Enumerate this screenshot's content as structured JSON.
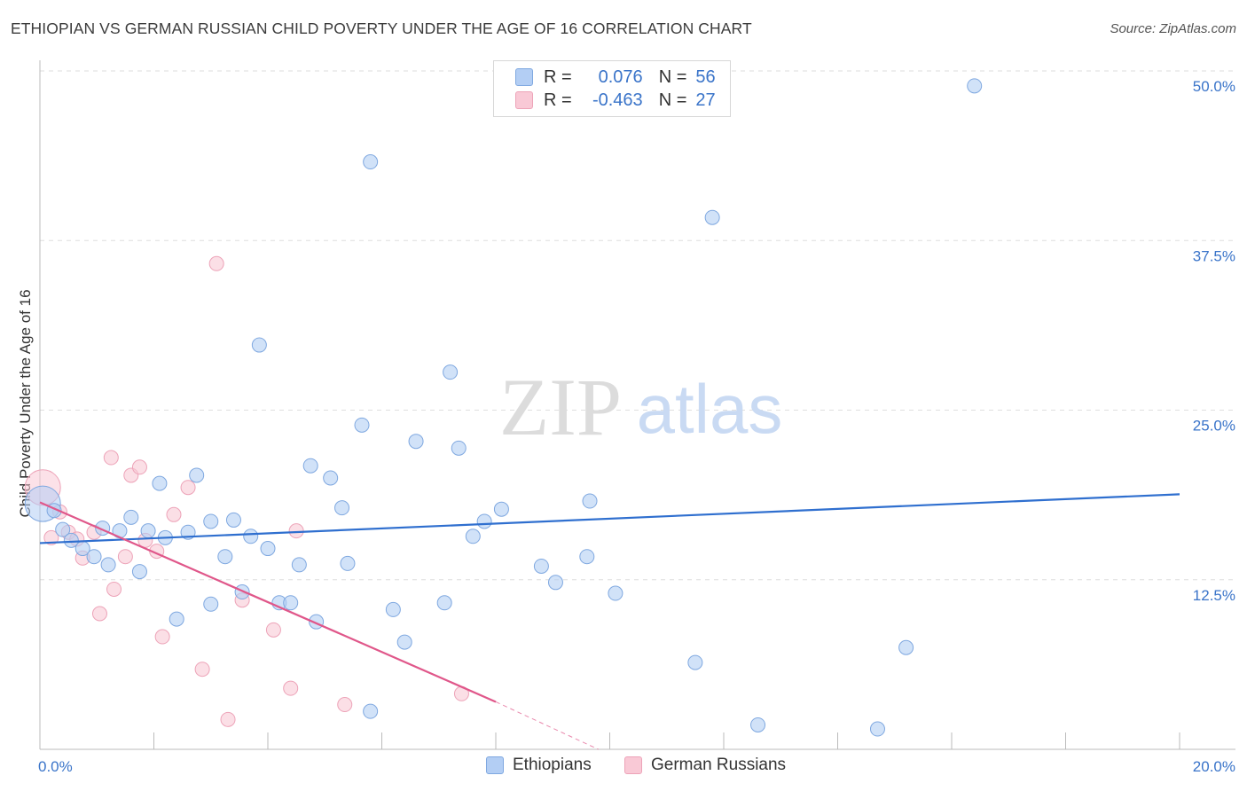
{
  "title": "ETHIOPIAN VS GERMAN RUSSIAN CHILD POVERTY UNDER THE AGE OF 16 CORRELATION CHART",
  "source": "Source: ZipAtlas.com",
  "watermark": {
    "zip": "ZIP",
    "atlas": "atlas"
  },
  "legend": {
    "ethiopians": {
      "r_label": "R =",
      "r_value": "0.076",
      "n_label": "N =",
      "n_value": "56"
    },
    "german_russians": {
      "r_label": "R =",
      "r_value": "-0.463",
      "n_label": "N =",
      "n_value": "27"
    }
  },
  "bottom_legend": {
    "ethiopians": "Ethiopians",
    "german_russians": "German Russians"
  },
  "colors": {
    "blue_fill": "#b3cef4",
    "blue_stroke": "#7fa8e0",
    "blue_line": "#2f6fcf",
    "pink_fill": "#f9c9d6",
    "pink_stroke": "#eda3b8",
    "pink_line": "#e0578a",
    "axis_label": "#3a74c9",
    "grid": "#dedede"
  },
  "chart_data": {
    "type": "scatter",
    "title": "ETHIOPIAN VS GERMAN RUSSIAN CHILD POVERTY UNDER THE AGE OF 16 CORRELATION CHART",
    "xlabel": "",
    "ylabel": "Child Poverty Under the Age of 16",
    "xlim": [
      0,
      20
    ],
    "ylim": [
      0,
      50
    ],
    "x_tick_labels": [
      {
        "value": 0,
        "label": "0.0%"
      },
      {
        "value": 20,
        "label": "20.0%"
      }
    ],
    "y_tick_labels": [
      {
        "value": 12.5,
        "label": "12.5%"
      },
      {
        "value": 25,
        "label": "25.0%"
      },
      {
        "value": 37.5,
        "label": "37.5%"
      },
      {
        "value": 50,
        "label": "50.0%"
      }
    ],
    "grid": true,
    "legend_position": "top-center",
    "series": [
      {
        "name": "Ethiopians",
        "r": 0.076,
        "n": 56,
        "trend": {
          "x": [
            0,
            20
          ],
          "y": [
            15.2,
            18.8
          ]
        },
        "points": [
          [
            0.05,
            18.1
          ],
          [
            0.25,
            17.6
          ],
          [
            0.4,
            16.2
          ],
          [
            0.55,
            15.4
          ],
          [
            0.75,
            14.8
          ],
          [
            0.95,
            14.2
          ],
          [
            1.1,
            16.3
          ],
          [
            1.2,
            13.6
          ],
          [
            1.4,
            16.1
          ],
          [
            1.6,
            17.1
          ],
          [
            1.75,
            13.1
          ],
          [
            1.9,
            16.1
          ],
          [
            2.1,
            19.6
          ],
          [
            2.2,
            15.6
          ],
          [
            2.4,
            9.6
          ],
          [
            2.6,
            16.0
          ],
          [
            2.75,
            20.2
          ],
          [
            3.0,
            10.7
          ],
          [
            3.0,
            16.8
          ],
          [
            3.25,
            14.2
          ],
          [
            3.4,
            16.9
          ],
          [
            3.55,
            11.6
          ],
          [
            3.7,
            15.7
          ],
          [
            3.85,
            29.8
          ],
          [
            4.0,
            14.8
          ],
          [
            4.2,
            10.8
          ],
          [
            4.4,
            10.8
          ],
          [
            4.55,
            13.6
          ],
          [
            4.75,
            20.9
          ],
          [
            4.85,
            9.4
          ],
          [
            5.1,
            20.0
          ],
          [
            5.3,
            17.8
          ],
          [
            5.4,
            13.7
          ],
          [
            5.65,
            23.9
          ],
          [
            5.8,
            2.8
          ],
          [
            5.8,
            43.3
          ],
          [
            6.2,
            10.3
          ],
          [
            6.4,
            7.9
          ],
          [
            6.6,
            22.7
          ],
          [
            7.1,
            10.8
          ],
          [
            7.2,
            27.8
          ],
          [
            7.35,
            22.2
          ],
          [
            7.6,
            15.7
          ],
          [
            7.8,
            16.8
          ],
          [
            8.1,
            17.7
          ],
          [
            8.8,
            13.5
          ],
          [
            9.05,
            12.3
          ],
          [
            9.6,
            14.2
          ],
          [
            9.65,
            18.3
          ],
          [
            10.1,
            11.5
          ],
          [
            11.5,
            6.4
          ],
          [
            11.8,
            39.2
          ],
          [
            12.6,
            1.8
          ],
          [
            14.7,
            1.5
          ],
          [
            15.2,
            7.5
          ],
          [
            16.4,
            48.9
          ]
        ]
      },
      {
        "name": "German Russians",
        "r": -0.463,
        "n": 27,
        "trend": {
          "x": [
            0,
            8
          ],
          "y": [
            18.2,
            3.5
          ]
        },
        "trend_extension": {
          "x": [
            8,
            9.8
          ],
          "y": [
            3.5,
            0.0
          ]
        },
        "points": [
          [
            0.05,
            19.3
          ],
          [
            0.2,
            15.6
          ],
          [
            0.35,
            17.5
          ],
          [
            0.5,
            16.0
          ],
          [
            0.65,
            15.5
          ],
          [
            0.75,
            14.1
          ],
          [
            0.95,
            16.0
          ],
          [
            1.05,
            10.0
          ],
          [
            1.25,
            21.5
          ],
          [
            1.3,
            11.8
          ],
          [
            1.5,
            14.2
          ],
          [
            1.6,
            20.2
          ],
          [
            1.75,
            20.8
          ],
          [
            1.85,
            15.4
          ],
          [
            2.05,
            14.6
          ],
          [
            2.15,
            8.3
          ],
          [
            2.35,
            17.3
          ],
          [
            2.6,
            19.3
          ],
          [
            2.85,
            5.9
          ],
          [
            3.1,
            35.8
          ],
          [
            3.3,
            2.2
          ],
          [
            3.55,
            11.0
          ],
          [
            4.1,
            8.8
          ],
          [
            4.4,
            4.5
          ],
          [
            4.5,
            16.1
          ],
          [
            5.35,
            3.3
          ],
          [
            7.4,
            4.1
          ]
        ]
      }
    ]
  }
}
